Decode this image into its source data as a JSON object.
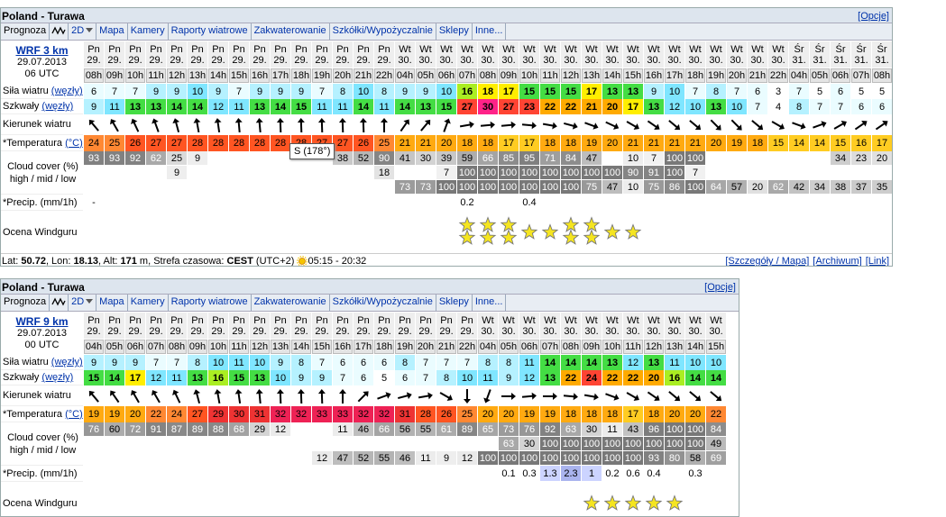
{
  "forecasts": [
    {
      "title": "Poland - Turawa",
      "options": "[Opcje]",
      "menu": [
        "Prognoza",
        "2D",
        "Mapa",
        "Kamery",
        "Raporty wiatrowe",
        "Zakwaterowanie",
        "Szkółki/Wypożyczalnie",
        "Sklepy",
        "Inne..."
      ],
      "model": "WRF 3 km",
      "date": "29.07.2013",
      "run": "06 UTC",
      "labels": {
        "wind": "Siła wiatru ",
        "unit_knots": "(węzły)",
        "gust": "Szkwały ",
        "direction": "Kierunek wiatru",
        "temperature": "*Temperatura ",
        "unit_celsius": "(°C)",
        "cloud": "Cloud cover (%)",
        "cloud_sub": "high / mid / low",
        "precip": "*Precip. (mm/1h)",
        "rating": "Ocena Windguru"
      },
      "day_names": [
        "Pn",
        "Pn",
        "Pn",
        "Pn",
        "Pn",
        "Pn",
        "Pn",
        "Pn",
        "Pn",
        "Pn",
        "Pn",
        "Pn",
        "Pn",
        "Pn",
        "Pn",
        "Wt",
        "Wt",
        "Wt",
        "Wt",
        "Wt",
        "Wt",
        "Wt",
        "Wt",
        "Wt",
        "Wt",
        "Wt",
        "Wt",
        "Wt",
        "Wt",
        "Wt",
        "Wt",
        "Wt",
        "Wt",
        "Wt",
        "Śr",
        "Śr",
        "Śr",
        "Śr",
        "Śr"
      ],
      "day_dates": [
        "29.",
        "29.",
        "29.",
        "29.",
        "29.",
        "29.",
        "29.",
        "29.",
        "29.",
        "29.",
        "29.",
        "29.",
        "29.",
        "29.",
        "29.",
        "30.",
        "30.",
        "30.",
        "30.",
        "30.",
        "30.",
        "30.",
        "30.",
        "30.",
        "30.",
        "30.",
        "30.",
        "30.",
        "30.",
        "30.",
        "30.",
        "30.",
        "30.",
        "30.",
        "31.",
        "31.",
        "31.",
        "31.",
        "31."
      ],
      "hours": [
        "08h",
        "09h",
        "10h",
        "11h",
        "12h",
        "13h",
        "14h",
        "15h",
        "16h",
        "17h",
        "18h",
        "19h",
        "20h",
        "21h",
        "22h",
        "04h",
        "05h",
        "06h",
        "07h",
        "08h",
        "09h",
        "10h",
        "11h",
        "12h",
        "13h",
        "14h",
        "15h",
        "16h",
        "17h",
        "18h",
        "19h",
        "20h",
        "21h",
        "22h",
        "04h",
        "05h",
        "06h",
        "07h",
        "08h"
      ],
      "wind": [
        6,
        7,
        7,
        9,
        9,
        10,
        9,
        7,
        9,
        9,
        9,
        7,
        8,
        10,
        8,
        9,
        9,
        10,
        16,
        18,
        17,
        15,
        15,
        15,
        17,
        13,
        13,
        9,
        10,
        7,
        8,
        7,
        6,
        3,
        7,
        5,
        6,
        5,
        5
      ],
      "gust": [
        9,
        11,
        13,
        13,
        14,
        14,
        12,
        11,
        13,
        14,
        15,
        11,
        11,
        14,
        11,
        14,
        13,
        15,
        27,
        30,
        27,
        23,
        22,
        22,
        21,
        20,
        17,
        13,
        12,
        10,
        13,
        10,
        7,
        4,
        8,
        7,
        7,
        6,
        6
      ],
      "direction": [
        140,
        150,
        155,
        160,
        165,
        170,
        172,
        175,
        175,
        178,
        178,
        178,
        178,
        178,
        180,
        215,
        220,
        200,
        260,
        265,
        265,
        275,
        280,
        285,
        290,
        295,
        300,
        305,
        310,
        310,
        315,
        315,
        310,
        300,
        290,
        250,
        240,
        235,
        235
      ],
      "temperature": [
        24,
        25,
        26,
        27,
        27,
        28,
        28,
        28,
        28,
        28,
        28,
        27,
        27,
        26,
        25,
        21,
        21,
        20,
        18,
        18,
        17,
        17,
        18,
        18,
        19,
        20,
        21,
        21,
        21,
        21,
        20,
        19,
        18,
        15,
        14,
        14,
        15,
        16,
        17
      ],
      "cloud_high": [
        93,
        93,
        92,
        62,
        25,
        9,
        null,
        null,
        null,
        null,
        null,
        null,
        38,
        52,
        90,
        41,
        30,
        39,
        59,
        66,
        85,
        95,
        71,
        84,
        47,
        null,
        10,
        7,
        100,
        100,
        null,
        null,
        null,
        null,
        null,
        null,
        34,
        23,
        20
      ],
      "cloud_mid": [
        null,
        null,
        null,
        null,
        9,
        null,
        null,
        null,
        null,
        null,
        null,
        null,
        null,
        null,
        18,
        null,
        null,
        7,
        100,
        100,
        100,
        100,
        100,
        100,
        100,
        100,
        90,
        91,
        100,
        7,
        null,
        null,
        null,
        null,
        null,
        null,
        null,
        null,
        null
      ],
      "cloud_low": [
        null,
        null,
        null,
        null,
        null,
        null,
        null,
        null,
        null,
        null,
        null,
        null,
        null,
        null,
        null,
        73,
        73,
        100,
        100,
        100,
        100,
        100,
        100,
        100,
        75,
        47,
        10,
        75,
        86,
        100,
        64,
        57,
        20,
        62,
        42,
        34,
        38,
        37,
        35
      ],
      "precip": [
        "-",
        null,
        null,
        null,
        null,
        null,
        null,
        null,
        null,
        null,
        null,
        null,
        null,
        null,
        null,
        null,
        null,
        null,
        0.2,
        null,
        null,
        0.4,
        null,
        null,
        null,
        null,
        null,
        null,
        null,
        null,
        null,
        null,
        null,
        null,
        null,
        null,
        null,
        null,
        null
      ],
      "rating": [
        null,
        null,
        null,
        null,
        null,
        null,
        null,
        null,
        null,
        null,
        null,
        null,
        null,
        null,
        null,
        null,
        null,
        null,
        2,
        2,
        2,
        1,
        1,
        2,
        2,
        1,
        1,
        null,
        null,
        null,
        null,
        null,
        null,
        null,
        null,
        null,
        null,
        null,
        null
      ],
      "tooltip": "S (178°)",
      "footer": [
        {
          "text": "Lat: "
        },
        {
          "text": "50.72",
          "bold": true
        },
        {
          "text": ", Lon: "
        },
        {
          "text": "18.13",
          "bold": true
        },
        {
          "text": ", Alt: "
        },
        {
          "text": "171",
          "bold": true
        },
        {
          "text": " m, Strefa czasowa: "
        },
        {
          "text": "CEST",
          "bold": true
        },
        {
          "text": " (UTC+2) "
        },
        {
          "text": "05:15 - 20:32",
          "sun": true
        }
      ],
      "links": [
        "[Szczegóły / Mapa]",
        "[Archiwum]",
        "[Link]"
      ]
    },
    {
      "title": "Poland - Turawa",
      "options": "[Opcje]",
      "menu": [
        "Prognoza",
        "2D",
        "Mapa",
        "Kamery",
        "Raporty wiatrowe",
        "Zakwaterowanie",
        "Szkółki/Wypożyczalnie",
        "Sklepy",
        "Inne..."
      ],
      "model": "WRF 9 km",
      "date": "29.07.2013",
      "run": "00 UTC",
      "labels": {
        "wind": "Siła wiatru ",
        "unit_knots": "(węzły)",
        "gust": "Szkwały ",
        "direction": "Kierunek wiatru",
        "temperature": "*Temperatura ",
        "unit_celsius": "(°C)",
        "cloud": "Cloud cover (%)",
        "cloud_sub": "high / mid / low",
        "precip": "*Precip. (mm/1h)",
        "rating": "Ocena Windguru"
      },
      "day_names": [
        "Pn",
        "Pn",
        "Pn",
        "Pn",
        "Pn",
        "Pn",
        "Pn",
        "Pn",
        "Pn",
        "Pn",
        "Pn",
        "Pn",
        "Pn",
        "Pn",
        "Pn",
        "Pn",
        "Pn",
        "Pn",
        "Pn",
        "Wt",
        "Wt",
        "Wt",
        "Wt",
        "Wt",
        "Wt",
        "Wt",
        "Wt",
        "Wt",
        "Wt",
        "Wt",
        "Wt"
      ],
      "day_dates": [
        "29.",
        "29.",
        "29.",
        "29.",
        "29.",
        "29.",
        "29.",
        "29.",
        "29.",
        "29.",
        "29.",
        "29.",
        "29.",
        "29.",
        "29.",
        "29.",
        "29.",
        "29.",
        "29.",
        "30.",
        "30.",
        "30.",
        "30.",
        "30.",
        "30.",
        "30.",
        "30.",
        "30.",
        "30.",
        "30.",
        "30."
      ],
      "hours": [
        "04h",
        "05h",
        "06h",
        "07h",
        "08h",
        "09h",
        "10h",
        "11h",
        "12h",
        "13h",
        "14h",
        "15h",
        "16h",
        "17h",
        "18h",
        "19h",
        "20h",
        "21h",
        "22h",
        "04h",
        "05h",
        "06h",
        "07h",
        "08h",
        "09h",
        "10h",
        "11h",
        "12h",
        "13h",
        "14h",
        "15h"
      ],
      "wind": [
        9,
        9,
        9,
        7,
        7,
        8,
        10,
        11,
        10,
        9,
        8,
        7,
        6,
        6,
        6,
        8,
        7,
        7,
        7,
        8,
        8,
        11,
        14,
        14,
        14,
        13,
        12,
        13,
        11,
        10,
        10
      ],
      "gust": [
        15,
        14,
        17,
        12,
        11,
        13,
        16,
        15,
        13,
        10,
        9,
        9,
        7,
        6,
        5,
        6,
        7,
        8,
        10,
        11,
        9,
        12,
        13,
        22,
        24,
        22,
        22,
        20,
        16,
        14,
        14
      ],
      "direction": [
        140,
        145,
        150,
        150,
        155,
        165,
        170,
        172,
        175,
        178,
        178,
        178,
        180,
        225,
        250,
        255,
        260,
        300,
        0,
        20,
        270,
        265,
        270,
        275,
        280,
        290,
        300,
        305,
        310,
        310,
        310
      ],
      "temperature": [
        19,
        19,
        20,
        22,
        24,
        27,
        29,
        30,
        31,
        32,
        32,
        33,
        33,
        32,
        32,
        31,
        28,
        26,
        25,
        20,
        20,
        19,
        19,
        18,
        18,
        18,
        17,
        18,
        20,
        20,
        22
      ],
      "cloud_high": [
        76,
        60,
        72,
        91,
        87,
        89,
        88,
        68,
        29,
        12,
        null,
        null,
        11,
        46,
        66,
        56,
        55,
        61,
        89,
        65,
        73,
        76,
        92,
        63,
        30,
        11,
        43,
        96,
        100,
        100,
        84
      ],
      "cloud_mid": [
        null,
        null,
        null,
        null,
        null,
        null,
        null,
        null,
        null,
        null,
        null,
        null,
        null,
        null,
        null,
        null,
        null,
        null,
        null,
        null,
        63,
        30,
        100,
        100,
        100,
        100,
        100,
        100,
        100,
        100,
        49
      ],
      "cloud_low": [
        null,
        null,
        null,
        null,
        null,
        null,
        null,
        null,
        null,
        null,
        null,
        12,
        47,
        52,
        55,
        46,
        11,
        9,
        12,
        100,
        100,
        100,
        100,
        100,
        100,
        100,
        100,
        93,
        80,
        58,
        69
      ],
      "precip": [
        null,
        null,
        null,
        null,
        null,
        null,
        null,
        null,
        null,
        null,
        null,
        null,
        null,
        null,
        null,
        null,
        null,
        null,
        null,
        null,
        0.1,
        0.3,
        1.3,
        2.3,
        1,
        0.2,
        0.6,
        0.4,
        null,
        0.3,
        null
      ],
      "rating": [
        null,
        null,
        null,
        null,
        null,
        null,
        null,
        null,
        null,
        null,
        null,
        null,
        null,
        null,
        null,
        null,
        null,
        null,
        null,
        null,
        null,
        null,
        null,
        null,
        1,
        1,
        1,
        1,
        1,
        null,
        null
      ]
    }
  ]
}
